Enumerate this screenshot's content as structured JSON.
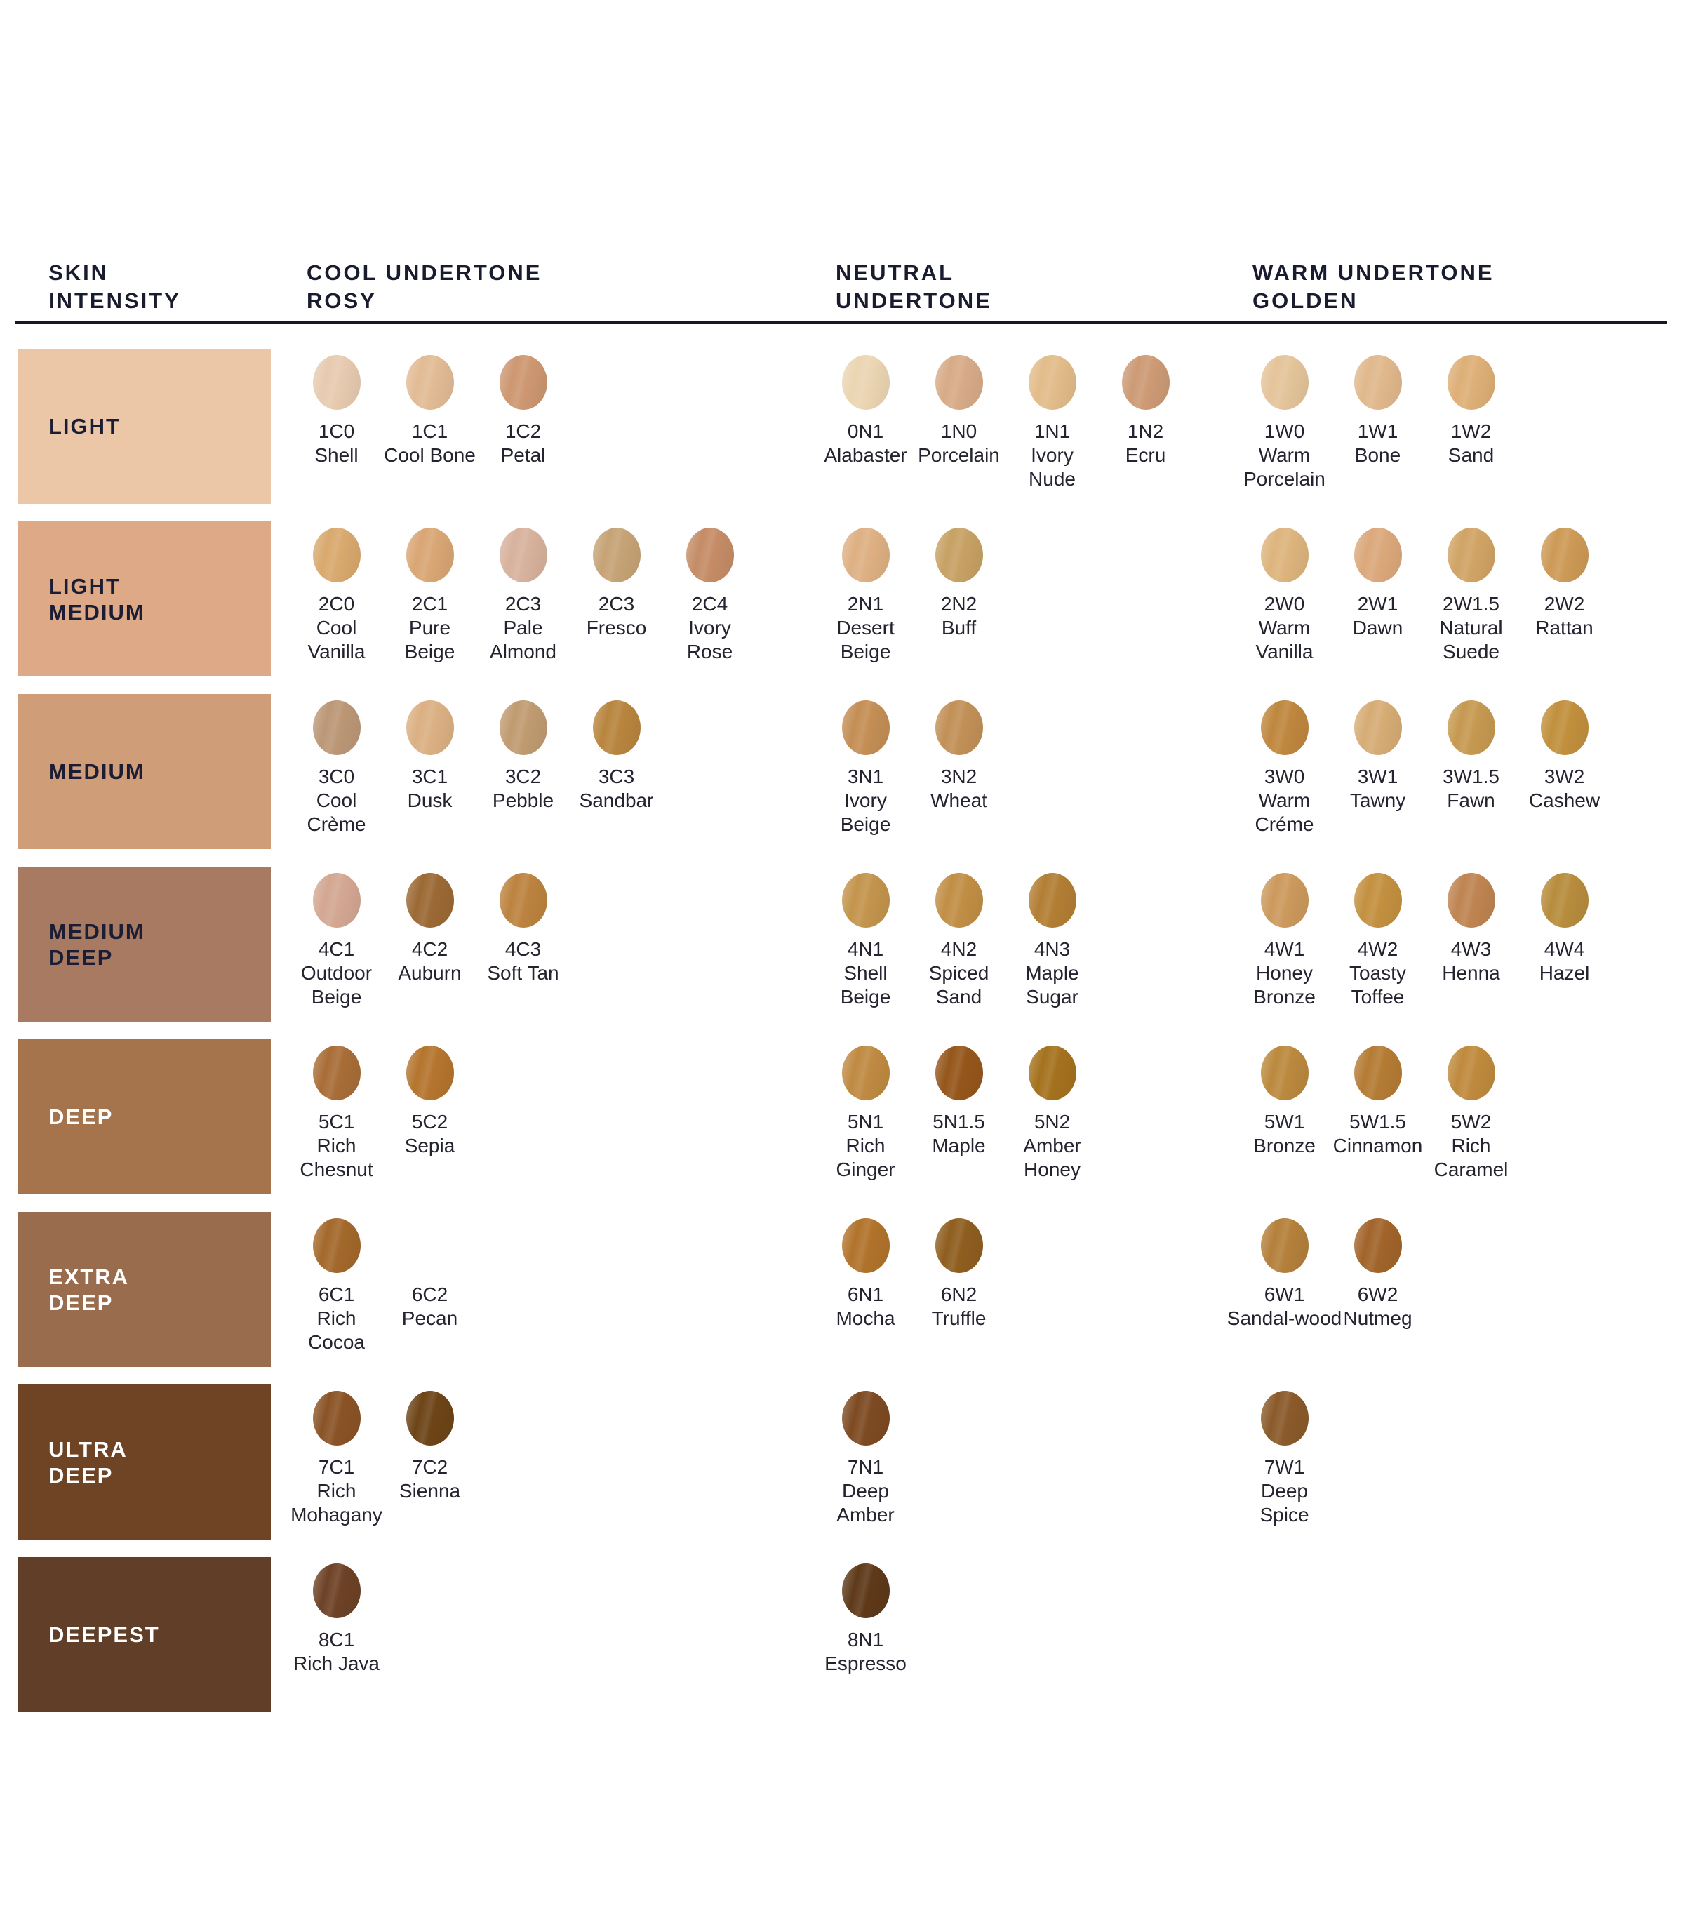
{
  "header": {
    "skin_intensity": "SKIN\nINTENSITY",
    "cool": "COOL UNDERTONE\nROSY",
    "neutral": "NEUTRAL\nUNDERTONE",
    "warm": "WARM UNDERTONE\nGOLDEN"
  },
  "colors": {
    "heading_text": "#191b2f",
    "shade_label_text": "#23242f",
    "rule": "#15172b",
    "dark_tile_label": "#1b1d35",
    "light_tile_label": "#ffffff"
  },
  "chart_data": {
    "type": "table",
    "title": "Foundation shade chart by skin intensity and undertone",
    "columns": [
      "SKIN INTENSITY",
      "COOL UNDERTONE ROSY",
      "NEUTRAL UNDERTONE",
      "WARM UNDERTONE GOLDEN"
    ],
    "rows": [
      {
        "intensity": "LIGHT",
        "tile_color": "#ebc7a8",
        "label_color": "#1b1d35",
        "cool": [
          {
            "code": "1C0",
            "name": "Shell",
            "color": "#e7cbb0"
          },
          {
            "code": "1C1",
            "name": "Cool Bone",
            "color": "#e2bb95"
          },
          {
            "code": "1C2",
            "name": "Petal",
            "color": "#cd9771"
          }
        ],
        "neutral": [
          {
            "code": "0N1",
            "name": "Alabaster",
            "color": "#ebd5b2"
          },
          {
            "code": "1N0",
            "name": "Porcelain",
            "color": "#d7ab87"
          },
          {
            "code": "1N1",
            "name": "Ivory Nude",
            "color": "#e2bc8a"
          },
          {
            "code": "1N2",
            "name": "Ecru",
            "color": "#cd9a75"
          }
        ],
        "warm": [
          {
            "code": "1W0",
            "name": "Warm Porcelain",
            "color": "#e4c49a"
          },
          {
            "code": "1W1",
            "name": "Bone",
            "color": "#e0b88c"
          },
          {
            "code": "1W2",
            "name": "Sand",
            "color": "#deaf77"
          }
        ]
      },
      {
        "intensity": "LIGHT\nMEDIUM",
        "tile_color": "#dda987",
        "label_color": "#1b1d35",
        "cool": [
          {
            "code": "2C0",
            "name": "Cool Vanilla",
            "color": "#d9a96e"
          },
          {
            "code": "2C1",
            "name": "Pure Beige",
            "color": "#d9a674"
          },
          {
            "code": "2C3",
            "name": "Pale Almond",
            "color": "#d7b29d"
          },
          {
            "code": "2C3",
            "name": "Fresco",
            "color": "#c6a376"
          },
          {
            "code": "2C4",
            "name": "Ivory Rose",
            "color": "#c58c66"
          }
        ],
        "neutral": [
          {
            "code": "2N1",
            "name": "Desert Beige",
            "color": "#deb083"
          },
          {
            "code": "2N2",
            "name": "Buff",
            "color": "#c7a164"
          }
        ],
        "warm": [
          {
            "code": "2W0",
            "name": "Warm Vanilla",
            "color": "#ddb47d"
          },
          {
            "code": "2W1",
            "name": "Dawn",
            "color": "#dba87b"
          },
          {
            "code": "2W1.5",
            "name": "Natural Suede",
            "color": "#d1a365"
          },
          {
            "code": "2W2",
            "name": "Rattan",
            "color": "#cd9a56"
          }
        ]
      },
      {
        "intensity": "MEDIUM",
        "tile_color": "#cf9d77",
        "label_color": "#1b1d35",
        "cool": [
          {
            "code": "3C0",
            "name": "Cool Crème",
            "color": "#bb9776"
          },
          {
            "code": "3C1",
            "name": "Dusk",
            "color": "#dbb083"
          },
          {
            "code": "3C2",
            "name": "Pebble",
            "color": "#c09b71"
          },
          {
            "code": "3C3",
            "name": "Sandbar",
            "color": "#b8853e"
          }
        ],
        "neutral": [
          {
            "code": "3N1",
            "name": "Ivory Beige",
            "color": "#c48e55"
          },
          {
            "code": "3N2",
            "name": "Wheat",
            "color": "#c19057"
          }
        ],
        "warm": [
          {
            "code": "3W0",
            "name": "Warm Créme",
            "color": "#bf873e"
          },
          {
            "code": "3W1",
            "name": "Tawny",
            "color": "#d6ac75"
          },
          {
            "code": "3W1.5",
            "name": "Fawn",
            "color": "#c69951"
          },
          {
            "code": "3W2",
            "name": "Cashew",
            "color": "#c1903d"
          }
        ]
      },
      {
        "intensity": "MEDIUM\nDEEP",
        "tile_color": "#a87a61",
        "label_color": "#1b1d35",
        "cool": [
          {
            "code": "4C1",
            "name": "Outdoor Beige",
            "color": "#d3a792"
          },
          {
            "code": "4C2",
            "name": "Auburn",
            "color": "#9b6934"
          },
          {
            "code": "4C3",
            "name": "Soft Tan",
            "color": "#bc833f"
          }
        ],
        "neutral": [
          {
            "code": "4N1",
            "name": "Shell Beige",
            "color": "#c3944c"
          },
          {
            "code": "4N2",
            "name": "Spiced Sand",
            "color": "#c18e45"
          },
          {
            "code": "4N3",
            "name": "Maple Sugar",
            "color": "#b27e34"
          }
        ],
        "warm": [
          {
            "code": "4W1",
            "name": "Honey Bronze",
            "color": "#cc995d"
          },
          {
            "code": "4W2",
            "name": "Toasty Toffee",
            "color": "#c39040"
          },
          {
            "code": "4W3",
            "name": "Henna",
            "color": "#bf8451"
          },
          {
            "code": "4W4",
            "name": "Hazel",
            "color": "#b78c3d"
          }
        ]
      },
      {
        "intensity": "DEEP",
        "tile_color": "#a5734c",
        "label_color": "#ffffff",
        "cool": [
          {
            "code": "5C1",
            "name": "Rich Chesnut",
            "color": "#a86d37"
          },
          {
            "code": "5C2",
            "name": "Sepia",
            "color": "#b4752e"
          }
        ],
        "neutral": [
          {
            "code": "5N1",
            "name": "Rich Ginger",
            "color": "#bf8a42"
          },
          {
            "code": "5N1.5",
            "name": "Maple",
            "color": "#95561b"
          },
          {
            "code": "5N2",
            "name": "Amber Honey",
            "color": "#a4721e"
          }
        ],
        "warm": [
          {
            "code": "5W1",
            "name": "Bronze",
            "color": "#bb893e"
          },
          {
            "code": "5W1.5",
            "name": "Cinnamon",
            "color": "#b47b34"
          },
          {
            "code": "5W2",
            "name": "Rich Caramel",
            "color": "#bf8a3d"
          }
        ]
      },
      {
        "intensity": "EXTRA\nDEEP",
        "tile_color": "#9a6c4e",
        "label_color": "#ffffff",
        "cool": [
          {
            "code": "6C1",
            "name": "Rich Cocoa",
            "color": "#a3682b"
          },
          {
            "code": "6C2",
            "name": "Pecan",
            "color": null
          }
        ],
        "neutral": [
          {
            "code": "6N1",
            "name": "Mocha",
            "color": "#b1732b"
          },
          {
            "code": "6N2",
            "name": "Truffle",
            "color": "#8e5e1f"
          }
        ],
        "warm": [
          {
            "code": "6W1",
            "name": "Sandal-⁠wood",
            "color": "#b4803b"
          },
          {
            "code": "6W2",
            "name": "Nutmeg",
            "color": "#a1642a"
          }
        ]
      },
      {
        "intensity": "ULTRA\nDEEP",
        "tile_color": "#6f4425",
        "label_color": "#ffffff",
        "cool": [
          {
            "code": "7C1",
            "name": "Rich Mohagany",
            "color": "#8a5326"
          },
          {
            "code": "7C2",
            "name": "Sienna",
            "color": "#6d4417"
          }
        ],
        "neutral": [
          {
            "code": "7N1",
            "name": "Deep Amber",
            "color": "#7d4a22"
          }
        ],
        "warm": [
          {
            "code": "7W1",
            "name": "Deep Spice",
            "color": "#8a5a2a"
          }
        ]
      },
      {
        "intensity": "DEEPEST",
        "tile_color": "#603e28",
        "label_color": "#ffffff",
        "cool": [
          {
            "code": "8C1",
            "name": "Rich Java",
            "color": "#6d4226"
          }
        ],
        "neutral": [
          {
            "code": "8N1",
            "name": "Espresso",
            "color": "#5e3919"
          }
        ],
        "warm": []
      }
    ]
  }
}
